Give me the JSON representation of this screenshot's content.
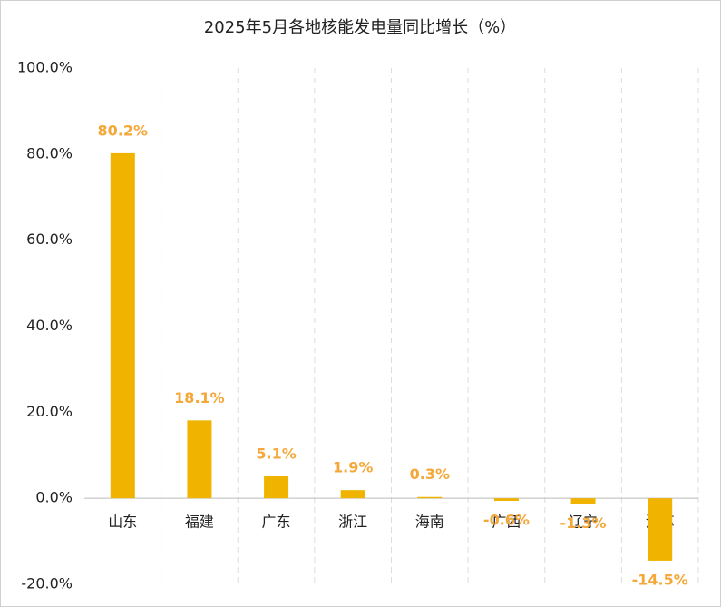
{
  "chart_data": {
    "type": "bar",
    "title": "2025年5月各地核能发电量同比增长（%）",
    "categories": [
      "山东",
      "福建",
      "广东",
      "浙江",
      "海南",
      "广西",
      "辽宁",
      "江苏"
    ],
    "values": [
      80.2,
      18.1,
      5.1,
      1.9,
      0.3,
      -0.6,
      -1.3,
      -14.5
    ],
    "value_labels": [
      "80.2%",
      "18.1%",
      "5.1%",
      "1.9%",
      "0.3%",
      "-0.6%",
      "-1.3%",
      "-14.5%"
    ],
    "color": "#f0b400",
    "label_color": "#f5a83a",
    "ylim": [
      -20,
      100
    ],
    "yticks": [
      {
        "value": -20,
        "label": "-20.0%"
      },
      {
        "value": 0,
        "label": "0.0%"
      },
      {
        "value": 20,
        "label": "20.0%"
      },
      {
        "value": 40,
        "label": "40.0%"
      },
      {
        "value": 60,
        "label": "60.0%"
      },
      {
        "value": 80,
        "label": "80.0%"
      },
      {
        "value": 100,
        "label": "100.0%"
      }
    ],
    "grid": "x"
  }
}
